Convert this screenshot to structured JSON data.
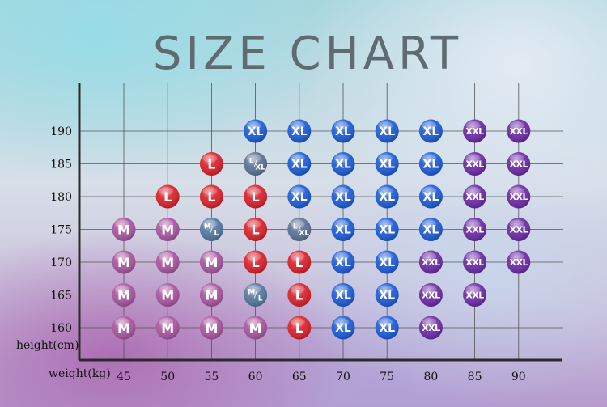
{
  "title": "SIZE CHART",
  "chart_data": {
    "type": "table",
    "title": "SIZE CHART",
    "xlabel": "weight(kg)",
    "ylabel": "height(cm)",
    "x": [
      45,
      50,
      55,
      60,
      65,
      70,
      75,
      80,
      85,
      90
    ],
    "y": [
      190,
      185,
      180,
      175,
      170,
      165,
      160
    ],
    "grid": true,
    "cells": [
      [
        "",
        "",
        "",
        "XL",
        "XL",
        "XL",
        "XL",
        "XL",
        "XXL",
        "XXL"
      ],
      [
        "",
        "",
        "L",
        "L/XL",
        "XL",
        "XL",
        "XL",
        "XL",
        "XXL",
        "XXL"
      ],
      [
        "",
        "L",
        "L",
        "L",
        "XL",
        "XL",
        "XL",
        "XL",
        "XXL",
        "XXL"
      ],
      [
        "M",
        "M",
        "M/L",
        "L",
        "L/XL",
        "XL",
        "XL",
        "XL",
        "XXL",
        "XXL"
      ],
      [
        "M",
        "M",
        "M",
        "L",
        "L",
        "XL",
        "XL",
        "XXL",
        "XXL",
        "XXL"
      ],
      [
        "M",
        "M",
        "M",
        "M/L",
        "L",
        "XL",
        "XL",
        "XXL",
        "XXL",
        ""
      ],
      [
        "M",
        "M",
        "M",
        "M",
        "L",
        "XL",
        "XL",
        "XXL",
        "",
        ""
      ]
    ],
    "size_colors": {
      "M": "#a8559f",
      "L": "#d9202a",
      "XL": "#1c5bd8",
      "XXL": "#6c2aa6",
      "M/L": "#5577a0",
      "L/XL": "#5d7196"
    }
  }
}
